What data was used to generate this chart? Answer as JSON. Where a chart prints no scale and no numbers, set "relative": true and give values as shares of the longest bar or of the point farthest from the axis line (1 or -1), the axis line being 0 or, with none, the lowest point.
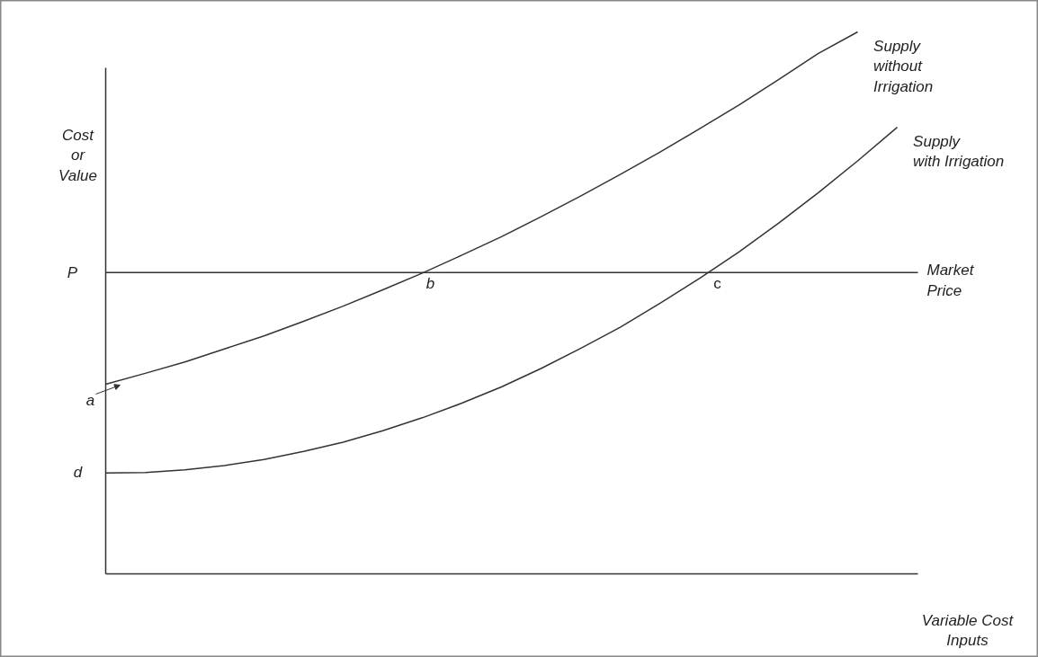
{
  "chart_data": {
    "type": "line",
    "relative": true,
    "xlabel": "Variable Cost Inputs",
    "ylabel": "Cost or Value",
    "categories": [
      null,
      null,
      null,
      null,
      null,
      null,
      null,
      null,
      null,
      null,
      null,
      null,
      null,
      null,
      null,
      null,
      null,
      null,
      null,
      null,
      null
    ],
    "series": [
      {
        "name": "Supply without Irrigation",
        "color": "#333333",
        "values": [
          0.35,
          0.37,
          0.391,
          0.415,
          0.439,
          0.466,
          0.494,
          0.524,
          0.555,
          0.588,
          0.622,
          0.659,
          0.697,
          0.737,
          0.778,
          0.821,
          0.865,
          0.912,
          0.96,
          1.0,
          null
        ]
      },
      {
        "name": "Supply with Irrigation",
        "color": "#333333",
        "values": [
          0.186,
          0.187,
          0.192,
          0.2,
          0.211,
          0.226,
          0.243,
          0.264,
          0.288,
          0.315,
          0.345,
          0.379,
          0.416,
          0.455,
          0.499,
          0.545,
          0.594,
          0.647,
          0.703,
          0.762,
          0.824
        ]
      }
    ],
    "ref_lines": [
      {
        "axis": "y",
        "value": 0.556,
        "label": "Market Price",
        "color": "#333333"
      }
    ],
    "annotations": [
      "P",
      {
        "text": "b",
        "y": 0.556
      },
      {
        "text": "c",
        "y": 0.556
      },
      "a",
      "d"
    ]
  }
}
